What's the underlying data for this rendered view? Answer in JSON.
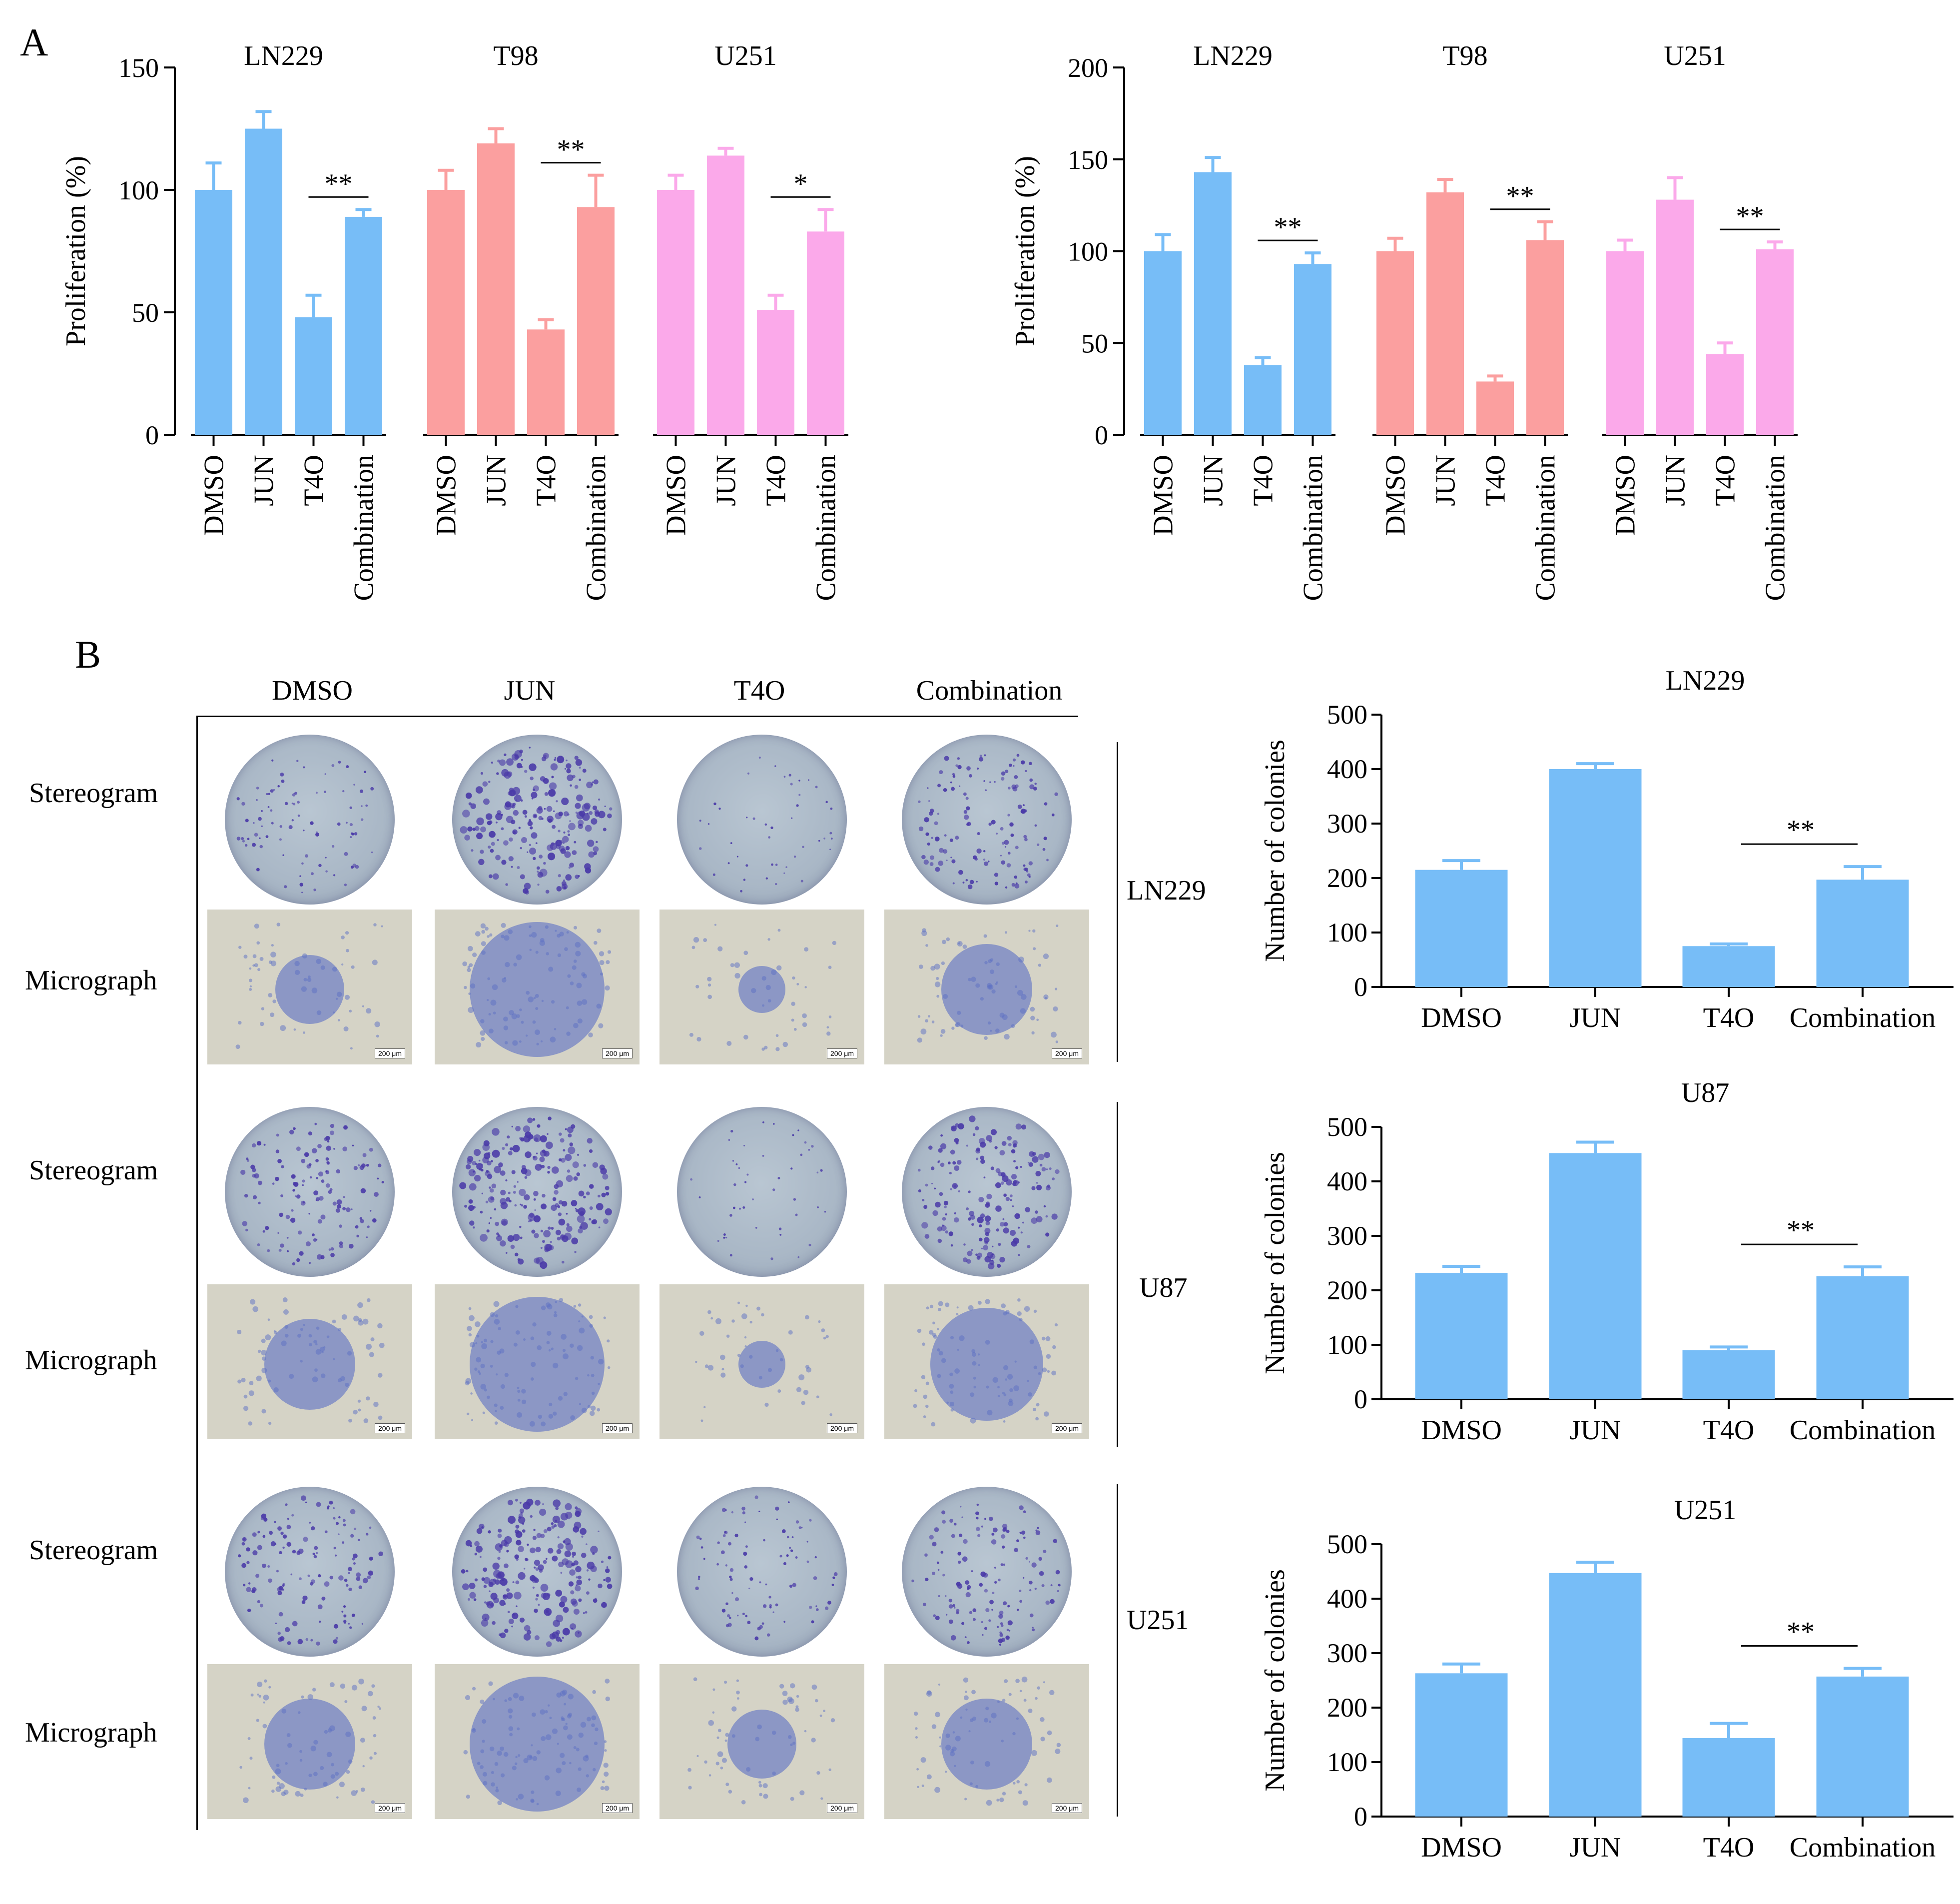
{
  "panel_labels": {
    "a": "A",
    "b": "B"
  },
  "panel_b": {
    "col_headers": [
      "DMSO",
      "JUN",
      "T4O",
      "Combination"
    ],
    "row_labels": {
      "stereo": "Stereogram",
      "micro": "Micrograph"
    },
    "cell_lines": [
      "LN229",
      "U87",
      "U251"
    ],
    "scale_bar": "200 μm",
    "colors": {
      "dish_stain": "#4a3aa8",
      "micro_stain": "#5b6fc4",
      "micro_bg": "#d5d3c6"
    },
    "density": {
      "LN229": [
        2,
        5,
        1,
        3
      ],
      "U87": [
        3,
        5,
        1,
        4
      ],
      "U251": [
        3,
        5,
        2,
        3
      ]
    }
  },
  "chart_data": [
    {
      "type": "bar",
      "ylabel": "Proliferation (%)",
      "ylim": [
        0,
        150
      ],
      "yticks": [
        0,
        50,
        100,
        150
      ],
      "categories": [
        "DMSO",
        "JUN",
        "T4O",
        "Combination"
      ],
      "groups": [
        {
          "name": "LN229",
          "color": "#77bdf7",
          "values": [
            100,
            125,
            48,
            89
          ],
          "errors": [
            11,
            7,
            9,
            3
          ],
          "sig": "**"
        },
        {
          "name": "T98",
          "color": "#fb9f9f",
          "values": [
            100,
            119,
            43,
            93
          ],
          "errors": [
            8,
            6,
            4,
            13
          ],
          "sig": "**"
        },
        {
          "name": "U251",
          "color": "#fba9ea",
          "values": [
            100,
            114,
            51,
            83
          ],
          "errors": [
            6,
            3,
            6,
            9
          ],
          "sig": "*"
        }
      ]
    },
    {
      "type": "bar",
      "ylabel": "Proliferation (%)",
      "ylim": [
        0,
        200
      ],
      "yticks": [
        0,
        50,
        100,
        150,
        200
      ],
      "categories": [
        "DMSO",
        "JUN",
        "T4O",
        "Combination"
      ],
      "groups": [
        {
          "name": "LN229",
          "color": "#77bdf7",
          "values": [
            100,
            143,
            38,
            93
          ],
          "errors": [
            9,
            8,
            4,
            6
          ],
          "sig": "**"
        },
        {
          "name": "T98",
          "color": "#fb9f9f",
          "values": [
            100,
            132,
            29,
            106
          ],
          "errors": [
            7,
            7,
            3,
            10
          ],
          "sig": "**"
        },
        {
          "name": "U251",
          "color": "#fba9ea",
          "values": [
            100,
            128,
            44,
            101
          ],
          "errors": [
            6,
            12,
            6,
            4
          ],
          "sig": "**"
        }
      ]
    },
    {
      "type": "bar",
      "title": "LN229",
      "ylabel": "Number of colonies",
      "ylim": [
        0,
        500
      ],
      "yticks": [
        0,
        100,
        200,
        300,
        400,
        500
      ],
      "categories": [
        "DMSO",
        "JUN",
        "T4O",
        "Combination"
      ],
      "color": "#77bdf7",
      "values": [
        215,
        400,
        75,
        197
      ],
      "errors": [
        17,
        10,
        4,
        24
      ],
      "sig": "**"
    },
    {
      "type": "bar",
      "title": "U87",
      "ylabel": "Number of colonies",
      "ylim": [
        0,
        500
      ],
      "yticks": [
        0,
        100,
        200,
        300,
        400,
        500
      ],
      "categories": [
        "DMSO",
        "JUN",
        "T4O",
        "Combination"
      ],
      "color": "#77bdf7",
      "values": [
        232,
        452,
        90,
        226
      ],
      "errors": [
        12,
        20,
        6,
        17
      ],
      "sig": "**"
    },
    {
      "type": "bar",
      "title": "U251",
      "ylabel": "Number of colonies",
      "ylim": [
        0,
        500
      ],
      "yticks": [
        0,
        100,
        200,
        300,
        400,
        500
      ],
      "categories": [
        "DMSO",
        "JUN",
        "T4O",
        "Combination"
      ],
      "color": "#77bdf7",
      "values": [
        263,
        447,
        144,
        257
      ],
      "errors": [
        17,
        20,
        27,
        15
      ],
      "sig": "**"
    }
  ]
}
